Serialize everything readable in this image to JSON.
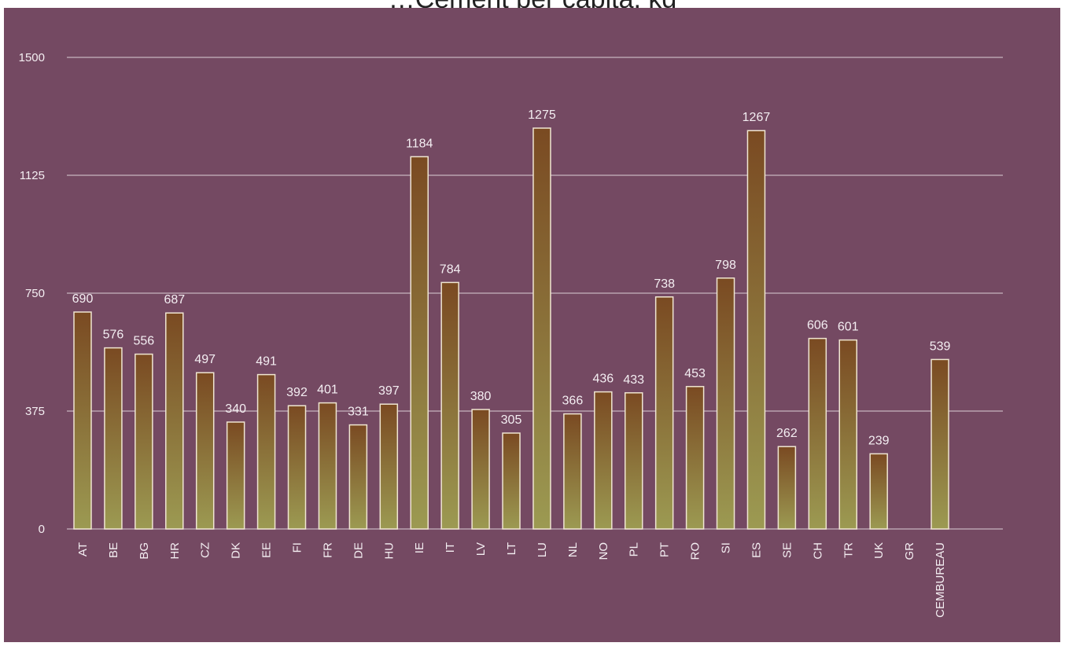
{
  "chart_data": {
    "type": "bar",
    "title": "…Cement per capita, kg",
    "xlabel": "",
    "ylabel": "",
    "ylim": [
      0,
      1500
    ],
    "yticks": [
      0,
      375,
      750,
      1125,
      1500
    ],
    "grid": true,
    "categories": [
      "AT",
      "BE",
      "BG",
      "HR",
      "CZ",
      "DK",
      "EE",
      "FI",
      "FR",
      "DE",
      "HU",
      "IE",
      "IT",
      "LV",
      "LT",
      "LU",
      "NL",
      "NO",
      "PL",
      "PT",
      "RO",
      "SI",
      "ES",
      "SE",
      "CH",
      "TR",
      "UK",
      "GR",
      "CEMBUREAU"
    ],
    "values": [
      690,
      576,
      556,
      687,
      497,
      340,
      491,
      392,
      401,
      331,
      397,
      1184,
      784,
      380,
      305,
      1275,
      366,
      436,
      433,
      738,
      453,
      798,
      1267,
      262,
      606,
      601,
      239,
      null,
      539
    ],
    "data_labels": [
      "690",
      "576",
      "556",
      "687",
      "497",
      "340",
      "491",
      "392",
      "401",
      "331",
      "397",
      "1184",
      "784",
      "380",
      "305",
      "1275",
      "366",
      "436",
      "433",
      "738",
      "453",
      "798",
      "1267",
      "262",
      "606",
      "601",
      "239",
      "",
      "539"
    ],
    "colors": {
      "background": "#744962",
      "gridline": "#c8b4c0",
      "bar_top": "#7a4a22",
      "bar_bottom": "#9c9a52",
      "bar_outline": "#f0e6d2",
      "text": "#f4eef2"
    }
  }
}
